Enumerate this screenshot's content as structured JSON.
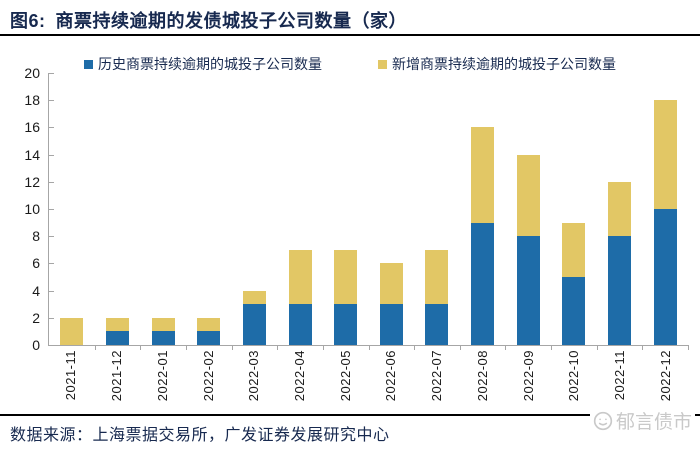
{
  "title": {
    "figure_label": "图6:",
    "text": "商票持续逾期的发债城投子公司数量（家）"
  },
  "legend": [
    {
      "label": "历史商票持续逾期的城投子公司数量",
      "color": "#1E6CA8"
    },
    {
      "label": "新增商票持续逾期的城投子公司数量",
      "color": "#E2C765"
    }
  ],
  "chart_data": {
    "type": "bar",
    "stacked": true,
    "title": "商票持续逾期的发债城投子公司数量（家）",
    "categories": [
      "2021-11",
      "2021-12",
      "2022-01",
      "2022-02",
      "2022-03",
      "2022-04",
      "2022-05",
      "2022-06",
      "2022-07",
      "2022-08",
      "2022-09",
      "2022-10",
      "2022-11",
      "2022-12"
    ],
    "series": [
      {
        "name": "历史商票持续逾期的城投子公司数量",
        "color": "#1E6CA8",
        "values": [
          0,
          1,
          1,
          1,
          3,
          3,
          3,
          3,
          3,
          9,
          8,
          5,
          8,
          10
        ]
      },
      {
        "name": "新增商票持续逾期的城投子公司数量",
        "color": "#E2C765",
        "values": [
          2,
          1,
          1,
          1,
          1,
          4,
          4,
          3,
          4,
          7,
          6,
          4,
          4,
          8
        ]
      }
    ],
    "totals": [
      2,
      2,
      2,
      2,
      4,
      7,
      7,
      6,
      7,
      16,
      14,
      9,
      12,
      18
    ],
    "xlabel": "",
    "ylabel": "",
    "ylim": [
      0,
      20
    ],
    "yticks": [
      0,
      2,
      4,
      6,
      8,
      10,
      12,
      14,
      16,
      18,
      20
    ],
    "grid": false,
    "legend_position": "top"
  },
  "footer": {
    "source": "数据来源：上海票据交易所，广发证券发展研究中心"
  },
  "watermark": {
    "text": "郁言债市",
    "icon": "wechat-account-logo-icon"
  },
  "colors": {
    "title_text": "#17294F",
    "bar_history": "#1E6CA8",
    "bar_new": "#E2C765",
    "axis_line": "#A6A6A6",
    "divider": "#000000",
    "watermark": "#C9C9C9"
  }
}
